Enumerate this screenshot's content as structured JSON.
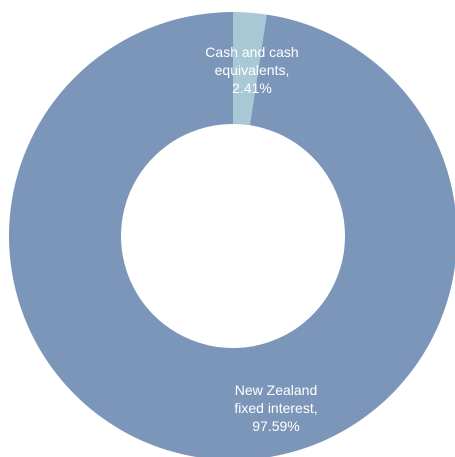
{
  "chart_data": {
    "type": "pie",
    "donut": true,
    "title": "",
    "categories": [
      "Cash and cash equivalents",
      "New Zealand fixed interest"
    ],
    "values": [
      2.41,
      97.59
    ],
    "unit": "%",
    "colors": [
      "#a9c8d6",
      "#7b96b8"
    ],
    "data_labels": [
      {
        "lines": [
          "Cash and cash",
          "equivalents,",
          "2.41%"
        ]
      },
      {
        "lines": [
          "New Zealand",
          "fixed interest,",
          "97.59%"
        ]
      }
    ]
  }
}
